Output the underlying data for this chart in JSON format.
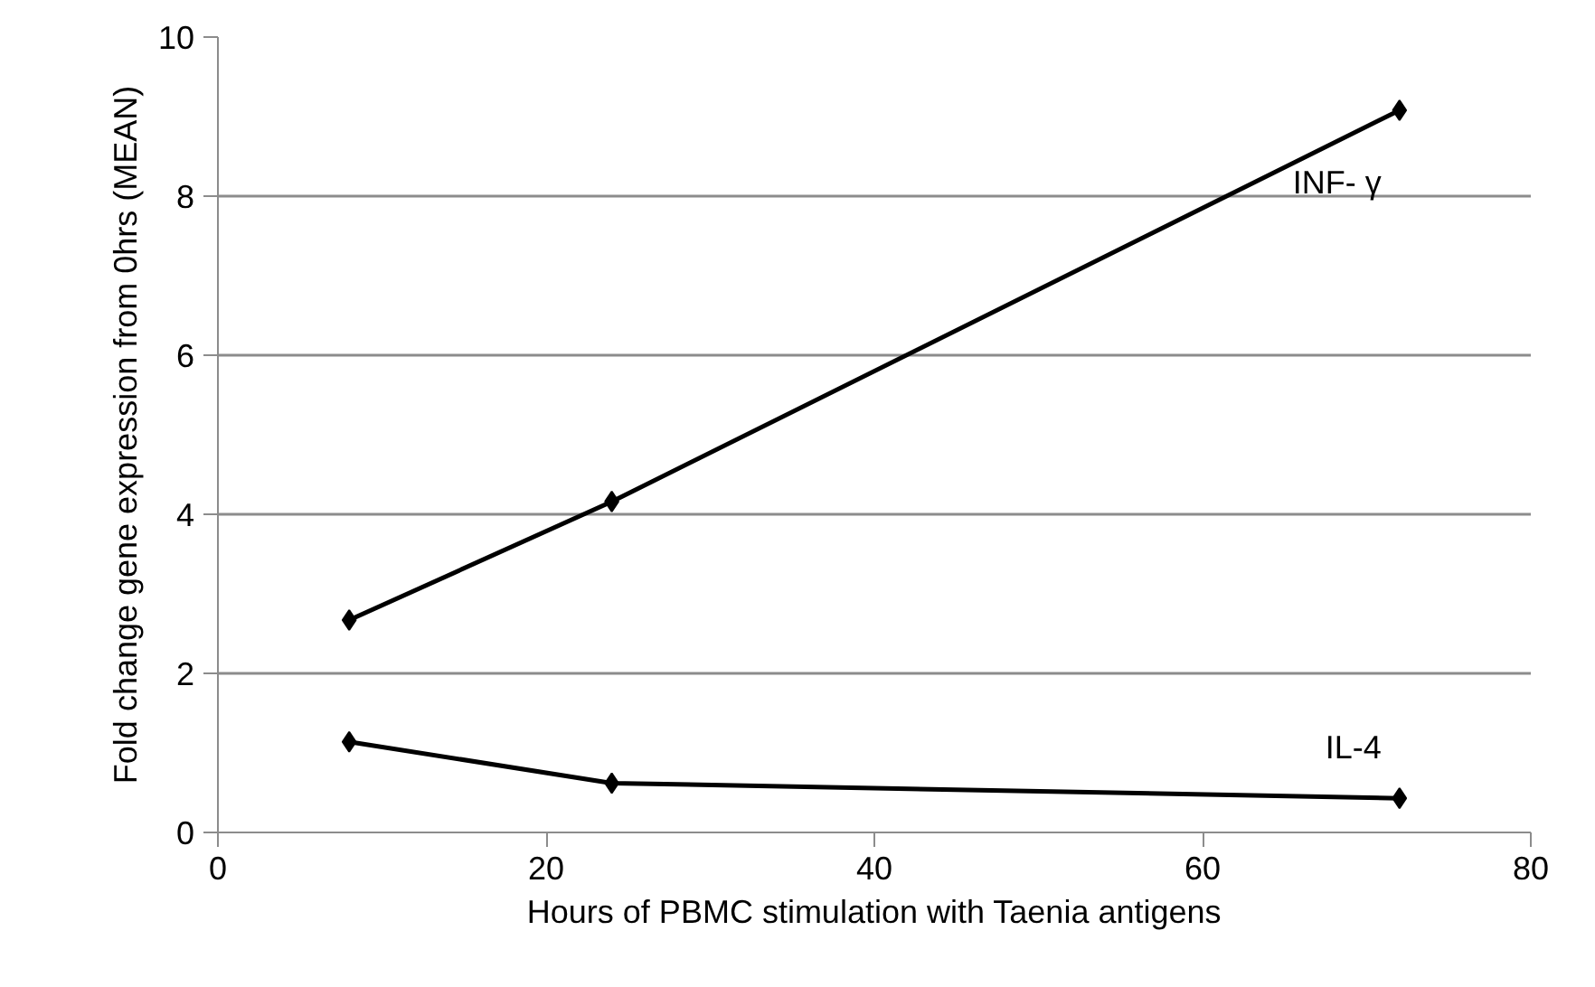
{
  "chart_data": {
    "type": "line",
    "xlabel": "Hours of PBMC stimulation with Taenia antigens",
    "ylabel": "Fold change gene expression from 0hrs (MEAN)",
    "x": [
      8,
      24,
      72
    ],
    "series": [
      {
        "name": "INF- γ",
        "color": "#000000",
        "values": [
          2.67,
          4.16,
          9.08
        ]
      },
      {
        "name": "IL-4",
        "color": "#000000",
        "values": [
          1.14,
          0.62,
          0.43
        ]
      }
    ],
    "xlim": [
      0,
      80
    ],
    "xticks": [
      0,
      20,
      40,
      60,
      80
    ],
    "ylim": [
      0,
      10
    ],
    "yticks": [
      0,
      2,
      4,
      6,
      8,
      10
    ],
    "grid": "y",
    "marker": "diamond",
    "line_style": "solid"
  }
}
